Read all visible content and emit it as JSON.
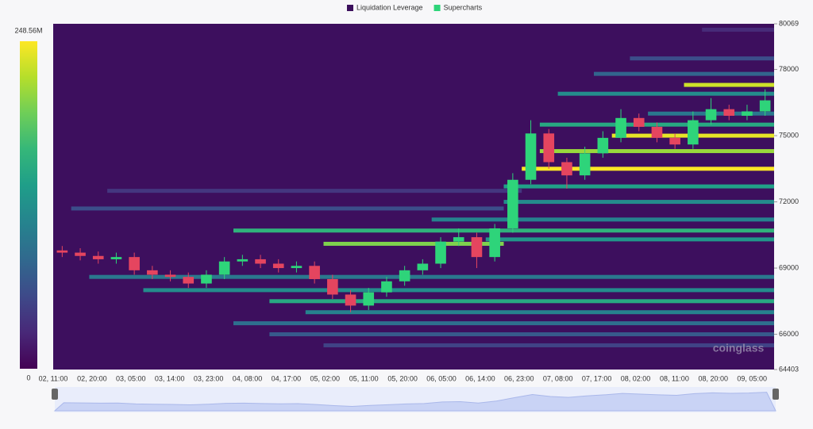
{
  "chart_data": {
    "type": "liquidation-heatmap",
    "legend": [
      {
        "name": "Liquidation Leverage",
        "color": "#3b0f5c"
      },
      {
        "name": "Supercharts",
        "color": "#2ed47a"
      }
    ],
    "watermark": "coinglass",
    "ylim": [
      64403,
      80069
    ],
    "yticks": [
      64403,
      66000,
      69000,
      72000,
      75000,
      78000,
      80069
    ],
    "x_labels": [
      "02, 11:00",
      "02, 20:00",
      "03, 05:00",
      "03, 14:00",
      "03, 23:00",
      "04, 08:00",
      "04, 17:00",
      "05, 02:00",
      "05, 11:00",
      "05, 20:00",
      "06, 05:00",
      "06, 14:00",
      "06, 23:00",
      "07, 08:00",
      "07, 17:00",
      "08, 02:00",
      "08, 11:00",
      "08, 20:00",
      "09, 05:00"
    ],
    "clim": [
      0,
      248560000
    ],
    "colorbar_ticks": [
      0,
      {
        "value": 248560000,
        "label": "248.56M"
      }
    ],
    "up_color": "#2ed47a",
    "down_color": "#e5455f",
    "candles": {
      "open": [
        69800,
        69700,
        69550,
        69400,
        69500,
        68900,
        68700,
        68600,
        68300,
        68700,
        69300,
        69400,
        69200,
        69000,
        69100,
        68500,
        67800,
        67300,
        67900,
        68400,
        68900,
        69200,
        70200,
        70400,
        69500,
        70800,
        73000,
        75100,
        73800,
        73200,
        74200,
        74900,
        75800,
        75400,
        74900,
        74600,
        75700,
        76200,
        75900,
        76100
      ],
      "high": [
        70000,
        69900,
        69750,
        69700,
        69700,
        69100,
        68900,
        68800,
        68900,
        69500,
        69600,
        69600,
        69400,
        69300,
        69300,
        68700,
        68000,
        68100,
        68600,
        69100,
        69400,
        70400,
        70800,
        70600,
        71000,
        73300,
        75700,
        75300,
        74000,
        74500,
        75200,
        76200,
        76000,
        75600,
        75100,
        76100,
        76700,
        76400,
        76400,
        77100
      ],
      "low": [
        69500,
        69350,
        69200,
        69200,
        68700,
        68500,
        68400,
        68100,
        68100,
        68500,
        69100,
        69000,
        68800,
        68800,
        68300,
        67600,
        67000,
        67100,
        67700,
        68200,
        68700,
        69000,
        70000,
        69000,
        69300,
        70600,
        72800,
        73500,
        72600,
        73000,
        74000,
        74700,
        75200,
        74700,
        74400,
        74400,
        75500,
        75700,
        75700,
        75900
      ],
      "close": [
        69700,
        69550,
        69400,
        69500,
        68900,
        68700,
        68600,
        68300,
        68700,
        69300,
        69400,
        69200,
        69000,
        69100,
        68500,
        67800,
        67300,
        67900,
        68400,
        68900,
        69200,
        70200,
        70400,
        69500,
        70800,
        73000,
        75100,
        73800,
        73200,
        74200,
        74900,
        75800,
        75400,
        74900,
        74600,
        75700,
        76200,
        75900,
        76100,
        76600
      ]
    },
    "heat_bands": [
      {
        "price": 79800,
        "from": 36,
        "to": 39,
        "value": 30000000
      },
      {
        "price": 78500,
        "from": 32,
        "to": 39,
        "value": 60000000
      },
      {
        "price": 77800,
        "from": 30,
        "to": 39,
        "value": 80000000
      },
      {
        "price": 77300,
        "from": 35,
        "to": 39,
        "value": 230000000
      },
      {
        "price": 76900,
        "from": 28,
        "to": 39,
        "value": 120000000
      },
      {
        "price": 76000,
        "from": 33,
        "to": 39,
        "value": 100000000
      },
      {
        "price": 75500,
        "from": 27,
        "to": 39,
        "value": 150000000
      },
      {
        "price": 75000,
        "from": 31,
        "to": 39,
        "value": 240000000
      },
      {
        "price": 74300,
        "from": 27,
        "to": 39,
        "value": 210000000
      },
      {
        "price": 73500,
        "from": 26,
        "to": 39,
        "value": 248000000
      },
      {
        "price": 72700,
        "from": 25,
        "to": 39,
        "value": 140000000
      },
      {
        "price": 72500,
        "from": 3,
        "to": 25,
        "value": 40000000
      },
      {
        "price": 72000,
        "from": 25,
        "to": 39,
        "value": 120000000
      },
      {
        "price": 71700,
        "from": 1,
        "to": 24,
        "value": 60000000
      },
      {
        "price": 71200,
        "from": 21,
        "to": 39,
        "value": 110000000
      },
      {
        "price": 70700,
        "from": 10,
        "to": 39,
        "value": 160000000
      },
      {
        "price": 70300,
        "from": 24,
        "to": 39,
        "value": 130000000
      },
      {
        "price": 70100,
        "from": 15,
        "to": 24,
        "value": 200000000
      },
      {
        "price": 68600,
        "from": 2,
        "to": 39,
        "value": 100000000
      },
      {
        "price": 68000,
        "from": 5,
        "to": 39,
        "value": 120000000
      },
      {
        "price": 67500,
        "from": 12,
        "to": 39,
        "value": 150000000
      },
      {
        "price": 67000,
        "from": 14,
        "to": 39,
        "value": 110000000
      },
      {
        "price": 66500,
        "from": 10,
        "to": 39,
        "value": 90000000
      },
      {
        "price": 66000,
        "from": 12,
        "to": 39,
        "value": 70000000
      },
      {
        "price": 65500,
        "from": 15,
        "to": 39,
        "value": 50000000
      }
    ]
  }
}
